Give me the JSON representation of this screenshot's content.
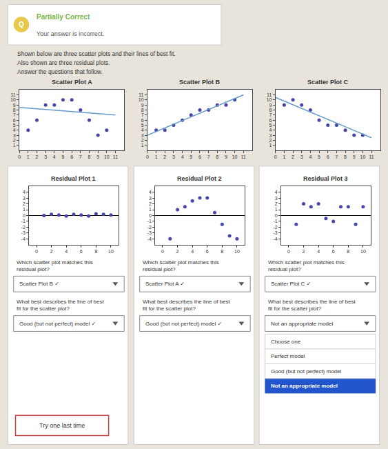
{
  "title": "Partially Correct",
  "subtitle": "Your answer is incorrect.",
  "annotations": [
    "Q",
    "Shown below are three scatter plots and their lines of best fit.",
    "Also shown are three residual plots.",
    "Answer the questions that follow.",
    "Try one last time"
  ],
  "chart_data": [
    {
      "type": "scatter",
      "title": "Scatter Plot A",
      "xlim": [
        0,
        12
      ],
      "ylim": [
        0,
        12
      ],
      "xticks": [
        0,
        1,
        2,
        3,
        4,
        5,
        6,
        7,
        8,
        9,
        10,
        11
      ],
      "yticks": [
        1,
        2,
        3,
        4,
        5,
        6,
        7,
        8,
        9,
        10,
        11
      ],
      "grid": false,
      "series": [
        {
          "type": "scatter",
          "color": "#4444aa",
          "x": [
            1,
            2,
            3,
            4,
            5,
            6,
            7,
            8,
            9,
            10
          ],
          "values": [
            4,
            6,
            9,
            9,
            10,
            10,
            8,
            6,
            3,
            4
          ]
        },
        {
          "type": "line",
          "color": "#6699cc",
          "x": [
            0,
            11
          ],
          "values": [
            8.5,
            7.0
          ]
        }
      ]
    },
    {
      "type": "scatter",
      "title": "Scatter Plot B",
      "xlim": [
        0,
        12
      ],
      "ylim": [
        0,
        12
      ],
      "xticks": [
        0,
        1,
        2,
        3,
        4,
        5,
        6,
        7,
        8,
        9,
        10,
        11
      ],
      "yticks": [
        1,
        2,
        3,
        4,
        5,
        6,
        7,
        8,
        9,
        10,
        11
      ],
      "grid": false,
      "series": [
        {
          "type": "scatter",
          "color": "#4444aa",
          "x": [
            1,
            2,
            3,
            4,
            5,
            6,
            7,
            8,
            9,
            10
          ],
          "values": [
            4,
            4,
            5,
            6,
            7,
            8,
            8,
            9,
            9,
            10
          ]
        },
        {
          "type": "line",
          "color": "#6699cc",
          "x": [
            0,
            11
          ],
          "values": [
            3.0,
            11.0
          ]
        }
      ]
    },
    {
      "type": "scatter",
      "title": "Scatter Plot C",
      "xlim": [
        0,
        12
      ],
      "ylim": [
        0,
        12
      ],
      "xticks": [
        0,
        1,
        2,
        3,
        4,
        5,
        6,
        7,
        8,
        9,
        10,
        11
      ],
      "yticks": [
        1,
        2,
        3,
        4,
        5,
        6,
        7,
        8,
        9,
        10,
        11
      ],
      "grid": false,
      "series": [
        {
          "type": "scatter",
          "color": "#4444aa",
          "x": [
            1,
            2,
            3,
            4,
            5,
            6,
            7,
            8,
            9,
            10
          ],
          "values": [
            9,
            10,
            9,
            8,
            6,
            5,
            5,
            4,
            3,
            3
          ]
        },
        {
          "type": "line",
          "color": "#6699cc",
          "x": [
            0,
            11
          ],
          "values": [
            10.5,
            2.5
          ]
        }
      ]
    },
    {
      "type": "scatter",
      "title": "Residual Plot 1",
      "xlim": [
        -1,
        11
      ],
      "ylim": [
        -5,
        5
      ],
      "xticks": [
        0,
        2,
        4,
        6,
        8,
        10
      ],
      "yticks": [
        -4,
        -3,
        -2,
        -1,
        0,
        1,
        2,
        3,
        4
      ],
      "grid": false,
      "series": [
        {
          "type": "scatter",
          "color": "#4444aa",
          "x": [
            1,
            2,
            3,
            4,
            5,
            6,
            7,
            8,
            9,
            10
          ],
          "values": [
            0,
            0.2,
            0.1,
            -0.1,
            0.2,
            0.1,
            -0.1,
            0.3,
            0.2,
            0.1
          ]
        }
      ],
      "annotations": [
        "Which scatter plot matches this\nresidual plot?",
        "Scatter Plot B ✓",
        "What best describes the line of best\nfit for the scatter plot?",
        "Good (but not perfect) model ✓"
      ]
    },
    {
      "type": "scatter",
      "title": "Residual Plot 2",
      "xlim": [
        -1,
        11
      ],
      "ylim": [
        -5,
        5
      ],
      "xticks": [
        0,
        2,
        4,
        6,
        8,
        10
      ],
      "yticks": [
        -4,
        -3,
        -2,
        -1,
        0,
        1,
        2,
        3,
        4
      ],
      "grid": false,
      "series": [
        {
          "type": "scatter",
          "color": "#4444aa",
          "x": [
            1,
            2,
            3,
            4,
            5,
            6,
            7,
            8,
            9,
            10
          ],
          "values": [
            -4.0,
            1.0,
            1.5,
            2.5,
            3.0,
            3.0,
            0.5,
            -1.5,
            -3.5,
            -4.0
          ]
        }
      ],
      "annotations": [
        "Which scatter plot matches this\nresidual plot?",
        "Scatter Plot A ✓",
        "What best describes the line of best\nfit for the scatter plot?",
        "Good (but not perfect) model ✓"
      ]
    },
    {
      "type": "scatter",
      "title": "Residual Plot 3",
      "xlim": [
        -1,
        11
      ],
      "ylim": [
        -5,
        5
      ],
      "xticks": [
        0,
        2,
        4,
        6,
        8,
        10
      ],
      "yticks": [
        -4,
        -3,
        -2,
        -1,
        0,
        1,
        2,
        3,
        4
      ],
      "grid": false,
      "series": [
        {
          "type": "scatter",
          "color": "#4444aa",
          "x": [
            1,
            2,
            3,
            4,
            5,
            6,
            7,
            8,
            9,
            10
          ],
          "values": [
            -1.5,
            2.0,
            1.5,
            2.0,
            -0.5,
            -1.0,
            1.5,
            1.5,
            -1.5,
            1.5
          ]
        }
      ],
      "annotations": [
        "Which scatter plot matches this\nresidual plot?",
        "Scatter Plot C ✓",
        "What best describes the line of best\nfit for the scatter plot?",
        "Not an appropriate model",
        "Choose one",
        "Perfect model",
        "Good (but not perfect) model",
        "Not an appropriate model"
      ]
    }
  ]
}
